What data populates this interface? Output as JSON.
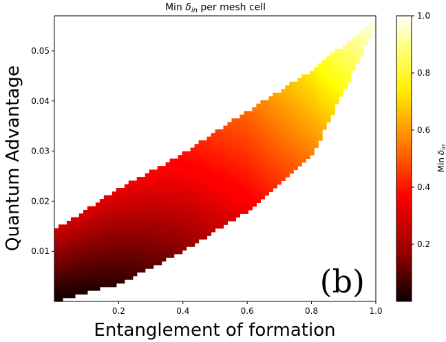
{
  "chart_data": {
    "type": "heatmap",
    "title_prefix": "Min ",
    "title_symbol": "δ",
    "title_subscript": "in",
    "title_suffix": " per mesh cell",
    "xlabel": "Entanglement of formation",
    "ylabel": "Quantum Advantage",
    "xlim": [
      0.0,
      1.0
    ],
    "ylim": [
      0.0,
      0.057
    ],
    "xticks": [
      0.2,
      0.4,
      0.6,
      0.8,
      1.0
    ],
    "xtick_labels": [
      "0.2",
      "0.4",
      "0.6",
      "0.8",
      "1.0"
    ],
    "yticks": [
      0.01,
      0.02,
      0.03,
      0.04,
      0.05
    ],
    "ytick_labels": [
      "0.01",
      "0.02",
      "0.03",
      "0.04",
      "0.05"
    ],
    "colorbar": {
      "label_prefix": "Min ",
      "label_symbol": "δ",
      "label_subscript": "in",
      "range": [
        0.0,
        1.0
      ],
      "ticks": [
        0.2,
        0.4,
        0.6,
        0.8,
        1.0
      ],
      "tick_labels": [
        "0.2",
        "0.4",
        "0.6",
        "0.8",
        "1.0"
      ],
      "colormap": "hot"
    },
    "panel_label": "(b)",
    "region": {
      "description_points_x": [
        0.0,
        0.2,
        0.4,
        0.6,
        0.8,
        1.0
      ],
      "upper_edge_y": [
        0.0142,
        0.0225,
        0.0295,
        0.038,
        0.046,
        0.0565
      ],
      "lower_edge_y": [
        0.0,
        0.0035,
        0.01,
        0.018,
        0.029,
        0.055
      ],
      "delta_min_at_upper_edge": [
        0.28,
        0.32,
        0.38,
        0.52,
        0.72,
        1.0
      ],
      "delta_min_at_lower_edge": [
        0.0,
        0.05,
        0.18,
        0.33,
        0.55,
        0.95
      ]
    }
  }
}
